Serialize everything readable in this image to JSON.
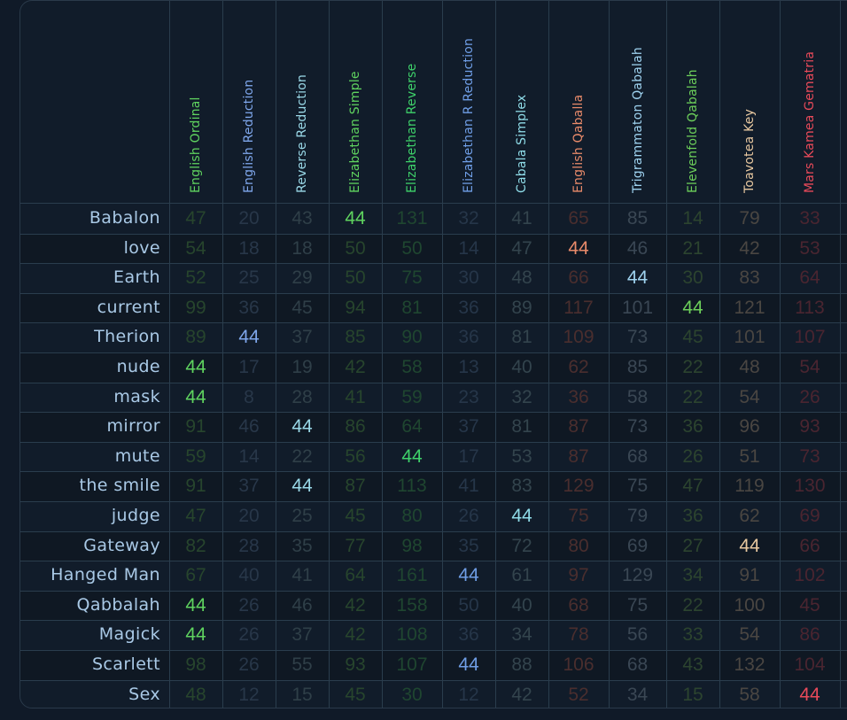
{
  "columns": [
    {
      "label": "English Ordinal",
      "color": "#5fd35f",
      "dim": "#27452d"
    },
    {
      "label": "English Reduction",
      "color": "#7fa7ec",
      "dim": "#283749"
    },
    {
      "label": "Reverse Reduction",
      "color": "#9ad9e8",
      "dim": "#2f3f48"
    },
    {
      "label": "Elizabethan Simple",
      "color": "#5fd35f",
      "dim": "#27452d"
    },
    {
      "label": "Elizabethan Reverse",
      "color": "#3ed26a",
      "dim": "#1f4630"
    },
    {
      "label": "Elizabethan R Reduction",
      "color": "#6f9ee6",
      "dim": "#263649"
    },
    {
      "label": "Cabala Simplex",
      "color": "#8fdce8",
      "dim": "#33444d"
    },
    {
      "label": "English Qaballa",
      "color": "#e88a6a",
      "dim": "#4a2e2e"
    },
    {
      "label": "Trigrammaton Qabalah",
      "color": "#9fd3f0",
      "dim": "#3a4754"
    },
    {
      "label": "Elevenfold Qabalah",
      "color": "#6ccf5a",
      "dim": "#2c442f"
    },
    {
      "label": "Toavotea Key",
      "color": "#e8c8a0",
      "dim": "#4a4642"
    },
    {
      "label": "Mars Kamea Gematria",
      "color": "#e84a5a",
      "dim": "#4a2530"
    }
  ],
  "rows": [
    {
      "label": "Babalon",
      "values": [
        "47",
        "20",
        "43",
        "44",
        "131",
        "32",
        "41",
        "65",
        "85",
        "14",
        "79",
        "33"
      ],
      "hit": 3
    },
    {
      "label": "love",
      "values": [
        "54",
        "18",
        "18",
        "50",
        "50",
        "14",
        "47",
        "44",
        "46",
        "21",
        "42",
        "53"
      ],
      "hit": 7
    },
    {
      "label": "Earth",
      "values": [
        "52",
        "25",
        "29",
        "50",
        "75",
        "30",
        "48",
        "66",
        "44",
        "30",
        "83",
        "64"
      ],
      "hit": 8
    },
    {
      "label": "current",
      "values": [
        "99",
        "36",
        "45",
        "94",
        "81",
        "36",
        "89",
        "117",
        "101",
        "44",
        "121",
        "113"
      ],
      "hit": 9
    },
    {
      "label": "Therion",
      "values": [
        "89",
        "44",
        "37",
        "85",
        "90",
        "36",
        "81",
        "109",
        "73",
        "45",
        "101",
        "107"
      ],
      "hit": 1
    },
    {
      "label": "nude",
      "values": [
        "44",
        "17",
        "19",
        "42",
        "58",
        "13",
        "40",
        "62",
        "85",
        "22",
        "48",
        "54"
      ],
      "hit": 0
    },
    {
      "label": "mask",
      "values": [
        "44",
        "8",
        "28",
        "41",
        "59",
        "23",
        "32",
        "36",
        "58",
        "22",
        "54",
        "26"
      ],
      "hit": 0
    },
    {
      "label": "mirror",
      "values": [
        "91",
        "46",
        "44",
        "86",
        "64",
        "37",
        "81",
        "87",
        "73",
        "36",
        "96",
        "93"
      ],
      "hit": 2
    },
    {
      "label": "mute",
      "values": [
        "59",
        "14",
        "22",
        "56",
        "44",
        "17",
        "53",
        "87",
        "68",
        "26",
        "51",
        "73"
      ],
      "hit": 4
    },
    {
      "label": "the smile",
      "values": [
        "91",
        "37",
        "44",
        "87",
        "113",
        "41",
        "83",
        "129",
        "75",
        "47",
        "119",
        "130"
      ],
      "hit": 2
    },
    {
      "label": "judge",
      "values": [
        "47",
        "20",
        "25",
        "45",
        "80",
        "26",
        "44",
        "75",
        "79",
        "36",
        "62",
        "69"
      ],
      "hit": 6
    },
    {
      "label": "Gateway",
      "values": [
        "82",
        "28",
        "35",
        "77",
        "98",
        "35",
        "72",
        "80",
        "69",
        "27",
        "44",
        "66"
      ],
      "hit": 10
    },
    {
      "label": "Hanged Man",
      "values": [
        "67",
        "40",
        "41",
        "64",
        "161",
        "44",
        "61",
        "97",
        "129",
        "34",
        "91",
        "102"
      ],
      "hit": 5
    },
    {
      "label": "Qabbalah",
      "values": [
        "44",
        "26",
        "46",
        "42",
        "158",
        "50",
        "40",
        "68",
        "75",
        "22",
        "100",
        "45"
      ],
      "hit": 0
    },
    {
      "label": "Magick",
      "values": [
        "44",
        "26",
        "37",
        "42",
        "108",
        "36",
        "34",
        "78",
        "56",
        "33",
        "54",
        "86"
      ],
      "hit": 0
    },
    {
      "label": "Scarlett",
      "values": [
        "98",
        "26",
        "55",
        "93",
        "107",
        "44",
        "88",
        "106",
        "68",
        "43",
        "132",
        "104"
      ],
      "hit": 5
    },
    {
      "label": "Sex",
      "values": [
        "48",
        "12",
        "15",
        "45",
        "30",
        "12",
        "42",
        "52",
        "34",
        "15",
        "58",
        "44"
      ],
      "hit": 11
    }
  ]
}
